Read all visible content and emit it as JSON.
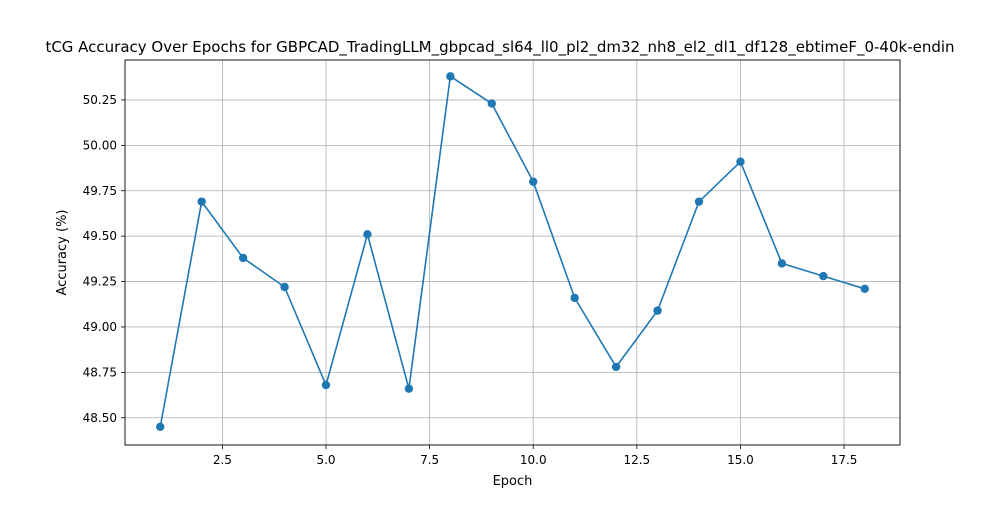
{
  "chart_data": {
    "type": "line",
    "title": "tCG Accuracy Over Epochs for GBPCAD_TradingLLM_gbpcad_sl64_ll0_pl2_dm32_nh8_el2_dl1_df128_ebtimeF_0-40k-endin",
    "xlabel": "Epoch",
    "ylabel": "Accuracy (%)",
    "xlim": [
      0.15,
      18.85
    ],
    "ylim": [
      48.35,
      50.47
    ],
    "xticks": [
      2.5,
      5.0,
      7.5,
      10.0,
      12.5,
      15.0,
      17.5
    ],
    "xtick_labels": [
      "2.5",
      "5.0",
      "7.5",
      "10.0",
      "12.5",
      "15.0",
      "17.5"
    ],
    "yticks": [
      48.5,
      48.75,
      49.0,
      49.25,
      49.5,
      49.75,
      50.0,
      50.25
    ],
    "ytick_labels": [
      "48.50",
      "48.75",
      "49.00",
      "49.25",
      "49.50",
      "49.75",
      "50.00",
      "50.25"
    ],
    "grid": true,
    "series": [
      {
        "color": "#1f77b4",
        "marker": "circle",
        "x": [
          1,
          2,
          3,
          4,
          5,
          6,
          7,
          8,
          9,
          10,
          11,
          12,
          13,
          14,
          15,
          16,
          17,
          18
        ],
        "y": [
          48.45,
          49.69,
          49.38,
          49.22,
          48.68,
          49.51,
          48.66,
          50.38,
          50.23,
          49.8,
          49.16,
          48.78,
          49.09,
          49.69,
          49.91,
          49.35,
          49.28,
          49.21
        ]
      }
    ]
  }
}
